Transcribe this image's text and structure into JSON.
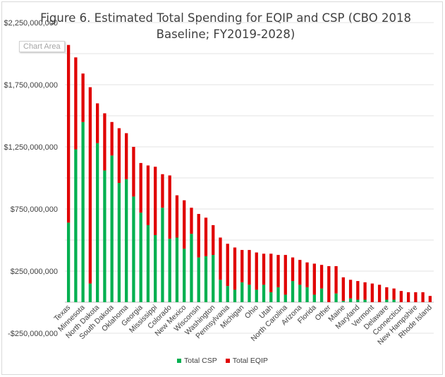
{
  "chart_data": {
    "type": "bar",
    "stacked": true,
    "title": "Figure 6. Estimated Total Spending for EQIP and CSP (CBO 2018\nBaseline; FY2019-2028)",
    "xlabel": "",
    "ylabel": "",
    "ylim": [
      -250000000,
      2250000000
    ],
    "yticks": [
      "$2,250,000,000",
      "$1,750,000,000",
      "$1,250,000,000",
      "$750,000,000",
      "$250,000,000",
      "-$250,000,000"
    ],
    "ytick_values": [
      2250000000,
      1750000000,
      1250000000,
      750000000,
      250000000,
      -250000000
    ],
    "grid": true,
    "legend_position": "bottom",
    "tooltip": "Chart Area",
    "categories": [
      "Texas",
      "",
      "Minnesota",
      "",
      "North Dakota",
      "",
      "South Dakota",
      "",
      "Oklahoma",
      "",
      "Georgia",
      "",
      "Mississippi",
      "",
      "Colorado",
      "",
      "New Mexico",
      "",
      "Wisconsin",
      "",
      "Washington",
      "",
      "Pennsylvania",
      "",
      "Michigan",
      "",
      "Ohio",
      "",
      "Utah",
      "",
      "North Carolina",
      "",
      "Arizona",
      "",
      "Florida",
      "",
      "Other",
      "",
      "Maine",
      "",
      "Maryland",
      "",
      "Vermont",
      "",
      "Delaware",
      "",
      "Connecticut",
      "",
      "New Hampshire",
      "",
      "Rhode Island"
    ],
    "series": [
      {
        "name": "Total CSP",
        "color": "#00b050",
        "values": [
          640000000,
          1230000000,
          1450000000,
          150000000,
          1280000000,
          1060000000,
          1180000000,
          960000000,
          990000000,
          850000000,
          720000000,
          620000000,
          540000000,
          760000000,
          510000000,
          520000000,
          430000000,
          550000000,
          360000000,
          370000000,
          380000000,
          180000000,
          130000000,
          100000000,
          160000000,
          140000000,
          100000000,
          140000000,
          80000000,
          120000000,
          60000000,
          170000000,
          140000000,
          120000000,
          60000000,
          110000000,
          0,
          70000000,
          10000000,
          30000000,
          20000000,
          20000000,
          0,
          0,
          20000000,
          20000000,
          0,
          0,
          0,
          0,
          0
        ]
      },
      {
        "name": "Total EQIP",
        "color": "#e00000",
        "values": [
          1430000000,
          740000000,
          390000000,
          1580000000,
          320000000,
          460000000,
          270000000,
          440000000,
          370000000,
          400000000,
          400000000,
          480000000,
          550000000,
          270000000,
          510000000,
          340000000,
          390000000,
          210000000,
          350000000,
          310000000,
          240000000,
          340000000,
          340000000,
          340000000,
          260000000,
          280000000,
          300000000,
          250000000,
          310000000,
          260000000,
          320000000,
          190000000,
          200000000,
          200000000,
          250000000,
          190000000,
          290000000,
          220000000,
          190000000,
          150000000,
          150000000,
          140000000,
          150000000,
          140000000,
          100000000,
          90000000,
          90000000,
          80000000,
          80000000,
          80000000,
          50000000
        ]
      }
    ]
  }
}
